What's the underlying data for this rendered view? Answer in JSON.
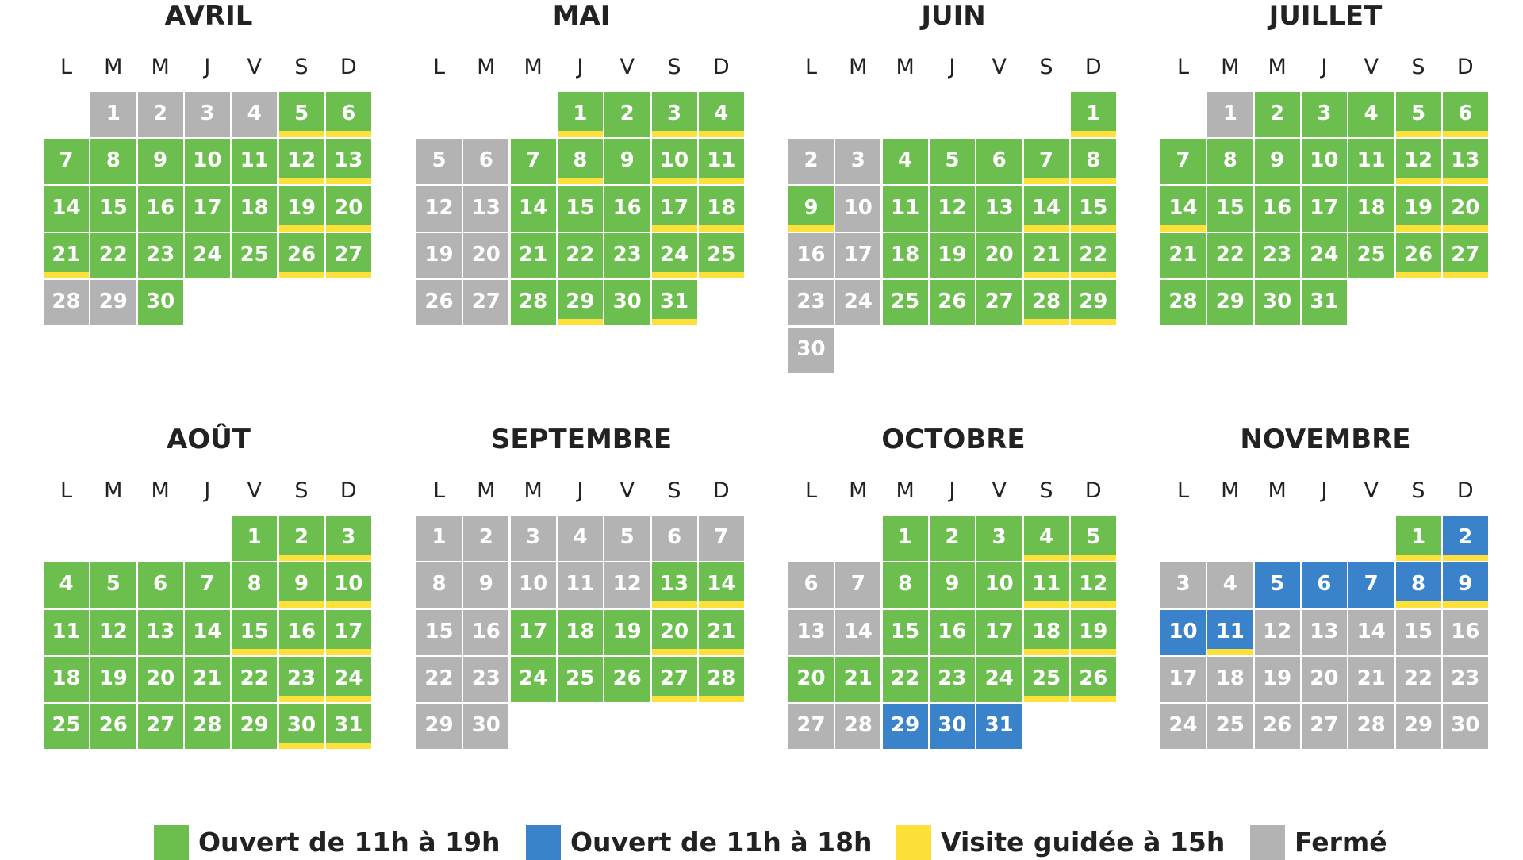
{
  "colors": {
    "open_19": "#6cbf4e",
    "open_18": "#3a82c9",
    "guided": "#fde13a",
    "closed": "#b3b3b3"
  },
  "weekdays": [
    "L",
    "M",
    "M",
    "J",
    "V",
    "S",
    "D"
  ],
  "months": [
    {
      "name": "AVRIL",
      "start": 1,
      "days": 30,
      "closed": [
        1,
        2,
        3,
        4,
        28,
        29
      ],
      "open18": [],
      "guided": [
        5,
        6,
        12,
        13,
        19,
        20,
        21,
        26,
        27
      ]
    },
    {
      "name": "MAI",
      "start": 3,
      "days": 31,
      "closed": [
        5,
        6,
        12,
        13,
        19,
        20,
        26,
        27
      ],
      "open18": [],
      "guided": [
        1,
        3,
        4,
        8,
        10,
        11,
        17,
        18,
        24,
        25,
        29,
        31
      ]
    },
    {
      "name": "JUIN",
      "start": 6,
      "days": 30,
      "closed": [
        2,
        3,
        10,
        16,
        17,
        23,
        24,
        30
      ],
      "open18": [],
      "guided": [
        1,
        7,
        8,
        9,
        14,
        15,
        21,
        22,
        28,
        29
      ]
    },
    {
      "name": "JUILLET",
      "start": 1,
      "days": 31,
      "closed": [
        1
      ],
      "open18": [],
      "guided": [
        5,
        6,
        12,
        13,
        14,
        19,
        20,
        26,
        27
      ]
    },
    {
      "name": "AOÛT",
      "start": 4,
      "days": 31,
      "closed": [],
      "open18": [],
      "guided": [
        2,
        3,
        9,
        10,
        15,
        16,
        17,
        23,
        24,
        30,
        31
      ]
    },
    {
      "name": "SEPTEMBRE",
      "start": 0,
      "days": 30,
      "closed": [
        1,
        2,
        3,
        4,
        5,
        6,
        7,
        8,
        9,
        10,
        11,
        12,
        15,
        16,
        22,
        23,
        29,
        30
      ],
      "open18": [],
      "guided": [
        13,
        14,
        20,
        21,
        27,
        28
      ]
    },
    {
      "name": "OCTOBRE",
      "start": 2,
      "days": 31,
      "closed": [
        6,
        7,
        13,
        14,
        27,
        28
      ],
      "open18": [
        29,
        30,
        31
      ],
      "guided": [
        4,
        5,
        11,
        12,
        18,
        19,
        25,
        26
      ]
    },
    {
      "name": "NOVEMBRE",
      "start": 5,
      "days": 30,
      "closed": [
        3,
        4,
        12,
        13,
        14,
        15,
        16,
        17,
        18,
        19,
        20,
        21,
        22,
        23,
        24,
        25,
        26,
        27,
        28,
        29,
        30
      ],
      "open18": [
        2,
        5,
        6,
        7,
        8,
        9,
        10,
        11
      ],
      "guided": [
        1,
        2,
        8,
        9,
        11
      ]
    }
  ],
  "legend": [
    {
      "key": "open_19",
      "label": "Ouvert de 11h à 19h"
    },
    {
      "key": "open_18",
      "label": "Ouvert de 11h à 18h"
    },
    {
      "key": "guided",
      "label": "Visite guidée à 15h"
    },
    {
      "key": "closed",
      "label": "Fermé"
    }
  ]
}
